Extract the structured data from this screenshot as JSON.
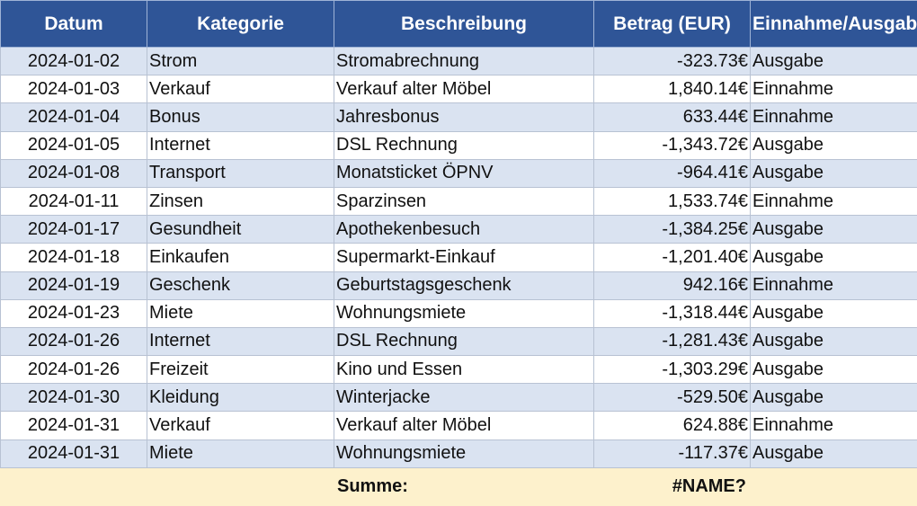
{
  "headers": [
    "Datum",
    "Kategorie",
    "Beschreibung",
    "Betrag (EUR)",
    "Einnahme/Ausgabe"
  ],
  "rows": [
    {
      "datum": "2024-01-02",
      "kategorie": "Strom",
      "beschreibung": "Stromabrechnung",
      "betrag": "-323.73€",
      "typ": "Ausgabe"
    },
    {
      "datum": "2024-01-03",
      "kategorie": "Verkauf",
      "beschreibung": "Verkauf alter Möbel",
      "betrag": "1,840.14€",
      "typ": "Einnahme"
    },
    {
      "datum": "2024-01-04",
      "kategorie": "Bonus",
      "beschreibung": "Jahresbonus",
      "betrag": "633.44€",
      "typ": "Einnahme"
    },
    {
      "datum": "2024-01-05",
      "kategorie": "Internet",
      "beschreibung": "DSL Rechnung",
      "betrag": "-1,343.72€",
      "typ": "Ausgabe"
    },
    {
      "datum": "2024-01-08",
      "kategorie": "Transport",
      "beschreibung": "Monatsticket ÖPNV",
      "betrag": "-964.41€",
      "typ": "Ausgabe"
    },
    {
      "datum": "2024-01-11",
      "kategorie": "Zinsen",
      "beschreibung": "Sparzinsen",
      "betrag": "1,533.74€",
      "typ": "Einnahme"
    },
    {
      "datum": "2024-01-17",
      "kategorie": "Gesundheit",
      "beschreibung": "Apothekenbesuch",
      "betrag": "-1,384.25€",
      "typ": "Ausgabe"
    },
    {
      "datum": "2024-01-18",
      "kategorie": "Einkaufen",
      "beschreibung": "Supermarkt-Einkauf",
      "betrag": "-1,201.40€",
      "typ": "Ausgabe"
    },
    {
      "datum": "2024-01-19",
      "kategorie": "Geschenk",
      "beschreibung": "Geburtstagsgeschenk",
      "betrag": "942.16€",
      "typ": "Einnahme"
    },
    {
      "datum": "2024-01-23",
      "kategorie": "Miete",
      "beschreibung": "Wohnungsmiete",
      "betrag": "-1,318.44€",
      "typ": "Ausgabe"
    },
    {
      "datum": "2024-01-26",
      "kategorie": "Internet",
      "beschreibung": "DSL Rechnung",
      "betrag": "-1,281.43€",
      "typ": "Ausgabe"
    },
    {
      "datum": "2024-01-26",
      "kategorie": "Freizeit",
      "beschreibung": "Kino und Essen",
      "betrag": "-1,303.29€",
      "typ": "Ausgabe"
    },
    {
      "datum": "2024-01-30",
      "kategorie": "Kleidung",
      "beschreibung": "Winterjacke",
      "betrag": "-529.50€",
      "typ": "Ausgabe"
    },
    {
      "datum": "2024-01-31",
      "kategorie": "Verkauf",
      "beschreibung": "Verkauf alter Möbel",
      "betrag": "624.88€",
      "typ": "Einnahme"
    },
    {
      "datum": "2024-01-31",
      "kategorie": "Miete",
      "beschreibung": "Wohnungsmiete",
      "betrag": "-117.37€",
      "typ": "Ausgabe"
    }
  ],
  "footer": {
    "label": "Summe:",
    "value": "#NAME?"
  },
  "colors": {
    "header_bg": "#2f5597",
    "band": "#dae3f1",
    "footer_bg": "#fdf1cc"
  }
}
